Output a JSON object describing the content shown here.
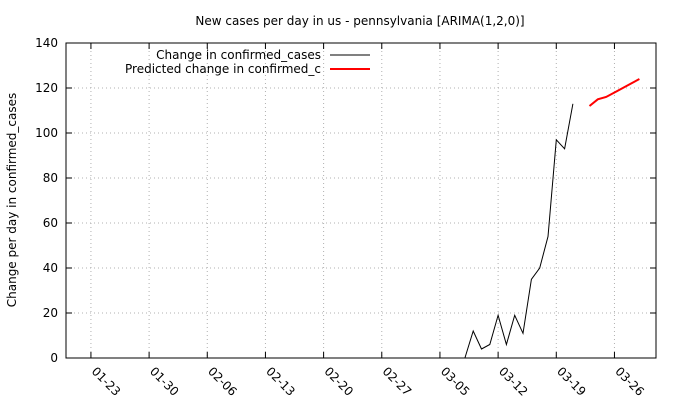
{
  "chart_data": {
    "type": "line",
    "title": "New cases per day in us - pennsylvania [ARIMA(1,2,0)]",
    "xlabel": "",
    "ylabel": "Change per day in confirmed_cases",
    "ylim": [
      0,
      140
    ],
    "yticks": [
      0,
      20,
      40,
      60,
      80,
      100,
      120,
      140
    ],
    "xlim": [
      "2020-01-20",
      "2020-03-31"
    ],
    "xticks": [
      "01-23",
      "01-30",
      "02-06",
      "02-13",
      "02-20",
      "02-27",
      "03-05",
      "03-12",
      "03-19",
      "03-26"
    ],
    "grid": true,
    "legend_position": "top-left",
    "series": [
      {
        "name": "Change in confirmed_cases",
        "color": "#000000",
        "x": [
          "2020-03-05",
          "2020-03-06",
          "2020-03-07",
          "2020-03-08",
          "2020-03-09",
          "2020-03-10",
          "2020-03-11",
          "2020-03-12",
          "2020-03-13",
          "2020-03-14",
          "2020-03-15",
          "2020-03-16",
          "2020-03-17",
          "2020-03-18",
          "2020-03-19",
          "2020-03-20",
          "2020-03-21",
          "2020-03-22"
        ],
        "values": [
          0,
          0,
          0,
          0,
          12,
          4,
          6,
          19,
          6,
          19,
          11,
          35,
          40,
          54,
          97,
          93,
          113,
          null
        ]
      },
      {
        "name": "Predicted change in confirmed_c",
        "color": "#ff0000",
        "x": [
          "2020-03-23",
          "2020-03-24",
          "2020-03-25",
          "2020-03-26",
          "2020-03-27",
          "2020-03-28",
          "2020-03-29",
          "2020-03-30"
        ],
        "values": [
          112,
          115,
          116,
          118,
          120,
          122,
          124,
          null
        ]
      }
    ]
  }
}
